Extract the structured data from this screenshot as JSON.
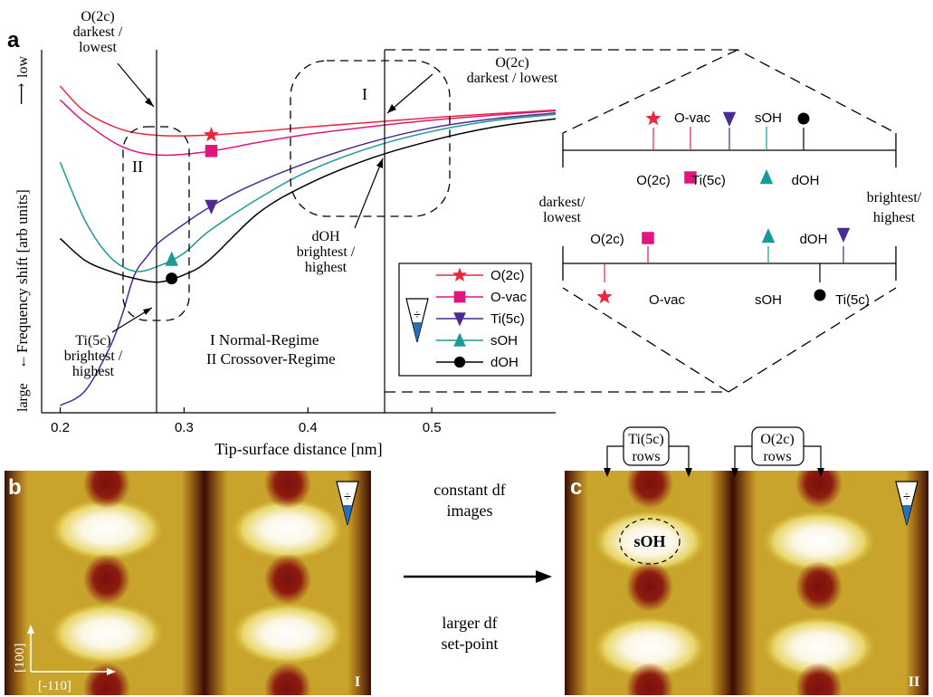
{
  "figure": {
    "panel_a": "a",
    "panel_b": "b",
    "panel_c": "c"
  },
  "chart_data": {
    "type": "line",
    "xlabel": "Tip-surface distance [nm]",
    "ylabel": "Frequency shift [arb units]",
    "y_top_label": "low",
    "y_bottom_label": "large",
    "x_ticks": [
      "0.2",
      "0.3",
      "0.4",
      "0.5"
    ],
    "xlim": [
      0.185,
      0.6
    ],
    "ylim": [
      0,
      1
    ],
    "grid": false,
    "legend_position": "bottom-right",
    "series": [
      {
        "name": "O(2c)",
        "color": "#e8283c",
        "marker": "star",
        "marker_x": 0.322,
        "x": [
          0.2,
          0.22,
          0.25,
          0.28,
          0.32,
          0.36,
          0.4,
          0.45,
          0.5,
          0.55,
          0.6
        ],
        "y": [
          0.9,
          0.83,
          0.78,
          0.764,
          0.765,
          0.775,
          0.787,
          0.8,
          0.813,
          0.824,
          0.834
        ]
      },
      {
        "name": "O-vac",
        "color": "#e0157e",
        "marker": "square",
        "marker_x": 0.322,
        "x": [
          0.2,
          0.22,
          0.25,
          0.28,
          0.32,
          0.36,
          0.4,
          0.45,
          0.5,
          0.55,
          0.6
        ],
        "y": [
          0.862,
          0.8,
          0.733,
          0.71,
          0.72,
          0.745,
          0.767,
          0.788,
          0.806,
          0.82,
          0.832
        ]
      },
      {
        "name": "Ti(5c)",
        "color": "#4a2a95",
        "marker": "triangle-down",
        "marker_x": 0.322,
        "x": [
          0.2,
          0.22,
          0.24,
          0.25,
          0.26,
          0.27,
          0.28,
          0.3,
          0.32,
          0.35,
          0.4,
          0.45,
          0.5,
          0.55,
          0.6
        ],
        "y": [
          0.02,
          0.06,
          0.18,
          0.27,
          0.38,
          0.43,
          0.47,
          0.52,
          0.565,
          0.62,
          0.69,
          0.745,
          0.785,
          0.81,
          0.826
        ]
      },
      {
        "name": "sOH",
        "color": "#1a9a96",
        "marker": "triangle-up",
        "marker_x": 0.29,
        "x": [
          0.2,
          0.22,
          0.24,
          0.26,
          0.28,
          0.3,
          0.32,
          0.36,
          0.4,
          0.45,
          0.5,
          0.55,
          0.6
        ],
        "y": [
          0.69,
          0.53,
          0.43,
          0.39,
          0.405,
          0.44,
          0.5,
          0.59,
          0.665,
          0.73,
          0.775,
          0.805,
          0.822
        ]
      },
      {
        "name": "dOH",
        "color": "#000000",
        "marker": "circle",
        "marker_x": 0.29,
        "x": [
          0.2,
          0.22,
          0.24,
          0.26,
          0.28,
          0.3,
          0.32,
          0.36,
          0.4,
          0.45,
          0.5,
          0.55,
          0.6
        ],
        "y": [
          0.48,
          0.42,
          0.39,
          0.37,
          0.36,
          0.38,
          0.42,
          0.55,
          0.63,
          0.7,
          0.75,
          0.787,
          0.81
        ]
      }
    ]
  },
  "annotations": {
    "o2c_top_left": [
      "O(2c)",
      "darkest /",
      "lowest"
    ],
    "o2c_mid": [
      "O(2c)",
      "darkest / lowest"
    ],
    "doh_label": [
      "dOH",
      "brightest /",
      "highest"
    ],
    "ti5c_label": [
      "Ti(5c)",
      "brightest /",
      "highest"
    ],
    "region_I": "I",
    "region_II": "II",
    "regime_I": "I Normal-Regime",
    "regime_II": "II Crossover-Regime"
  },
  "scale_diagram": {
    "left_label": [
      "darkest/",
      "lowest"
    ],
    "right_label": [
      "brightest/",
      "highest"
    ],
    "top_line": [
      {
        "label": "O(2c)",
        "marker": "star",
        "color": "#e8283c",
        "above": true
      },
      {
        "label": "O-vac",
        "marker": "square",
        "color": "#e0157e",
        "above": false
      },
      {
        "label": "Ti(5c)",
        "marker": "triangle-down",
        "color": "#4a2a95",
        "above": true
      },
      {
        "label": "sOH",
        "marker": "triangle-up",
        "color": "#1a9a96",
        "above": false
      },
      {
        "label": "dOH",
        "marker": "circle",
        "color": "#000000",
        "above": true
      }
    ],
    "bottom_line": [
      {
        "label": "O(2c)",
        "marker": "star",
        "color": "#e8283c"
      },
      {
        "label": "O-vac",
        "marker": "square",
        "color": "#e0157e"
      },
      {
        "label": "sOH",
        "marker": "triangle-up",
        "color": "#1a9a96"
      },
      {
        "label": "dOH",
        "marker": "circle",
        "color": "#000000"
      },
      {
        "label": "Ti(5c)",
        "marker": "triangle-down",
        "color": "#4a2a95"
      }
    ]
  },
  "images": {
    "middle_top": [
      "constant df",
      "images"
    ],
    "middle_bottom": [
      "larger df",
      "set-point"
    ],
    "b_corner": "I",
    "c_corner": "II",
    "dir_100": "[100]",
    "dir_110": "[-110]",
    "ti5c_rows": [
      "Ti(5c)",
      "rows"
    ],
    "o2c_rows": [
      "O(2c)",
      "rows"
    ],
    "soh_label": "sOH"
  }
}
